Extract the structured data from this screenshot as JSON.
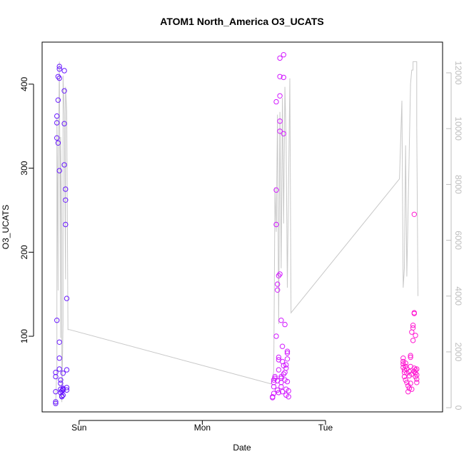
{
  "chart_data": {
    "type": "scatter",
    "title": "ATOM1 North_America O3_UCATS",
    "xlabel": "Date",
    "ylabel": "O3_UCATS",
    "x_unit": "days since Saturday 00:00",
    "xlim": [
      1.7,
      4.95
    ],
    "x_ticks": [
      {
        "value": 2,
        "label": "Sun"
      },
      {
        "value": 3,
        "label": "Mon"
      },
      {
        "value": 4,
        "label": "Tue"
      }
    ],
    "ylim": [
      10,
      450
    ],
    "y_ticks": [
      100,
      200,
      300,
      400
    ],
    "y2lim": [
      -150,
      13100
    ],
    "y2_ticks": [
      0,
      2000,
      4000,
      6000,
      8000,
      10000,
      12000
    ],
    "grid": false,
    "legend": "none",
    "colors": {
      "line": "#c8c8c8",
      "axis": "#000000",
      "right_axis": "#bdbdbd"
    },
    "series": [
      {
        "role": "points",
        "values": [
          [
            1.81,
            20,
            "#6a1aff"
          ],
          [
            1.81,
            22,
            "#6a1aff"
          ],
          [
            1.81,
            34,
            "#6a1aff"
          ],
          [
            1.81,
            52,
            "#6a1aff"
          ],
          [
            1.81,
            57,
            "#6a1aff"
          ],
          [
            1.82,
            119,
            "#6a1aff"
          ],
          [
            1.82,
            336,
            "#6a1aff"
          ],
          [
            1.82,
            354,
            "#6a1aff"
          ],
          [
            1.82,
            362,
            "#6a1aff"
          ],
          [
            1.83,
            330,
            "#6a1aff"
          ],
          [
            1.83,
            381,
            "#6a1aff"
          ],
          [
            1.83,
            409,
            "#6a1aff"
          ],
          [
            1.84,
            407,
            "#6a1aff"
          ],
          [
            1.84,
            418,
            "#6a1aff"
          ],
          [
            1.84,
            421,
            "#6a1aff"
          ],
          [
            1.84,
            93,
            "#6a1aff"
          ],
          [
            1.84,
            297,
            "#6a1aff"
          ],
          [
            1.84,
            74,
            "#6a1aff"
          ],
          [
            1.84,
            61,
            "#6a1aff"
          ],
          [
            1.85,
            48,
            "#6a1aff"
          ],
          [
            1.85,
            44,
            "#6a1aff"
          ],
          [
            1.85,
            37,
            "#6a1aff"
          ],
          [
            1.85,
            33,
            "#6a1aff"
          ],
          [
            1.86,
            28,
            "#6a1aff"
          ],
          [
            1.86,
            29,
            "#6a1aff"
          ],
          [
            1.86,
            35,
            "#6a1aff"
          ],
          [
            1.87,
            36,
            "#6a1aff"
          ],
          [
            1.87,
            37,
            "#6a1aff"
          ],
          [
            1.87,
            38,
            "#6a1aff"
          ],
          [
            1.87,
            56,
            "#6a1aff"
          ],
          [
            1.87,
            30,
            "#6a1aff"
          ],
          [
            1.88,
            304,
            "#6a1aff"
          ],
          [
            1.88,
            353,
            "#6a1aff"
          ],
          [
            1.88,
            392,
            "#6a1aff"
          ],
          [
            1.88,
            416,
            "#6a1aff"
          ],
          [
            1.89,
            275,
            "#6a1aff"
          ],
          [
            1.89,
            262,
            "#6a1aff"
          ],
          [
            1.89,
            233,
            "#6a1aff"
          ],
          [
            1.9,
            145,
            "#6a1aff"
          ],
          [
            1.9,
            60,
            "#6a1aff"
          ],
          [
            1.9,
            39,
            "#6a1aff"
          ],
          [
            1.9,
            36,
            "#6a1aff"
          ],
          [
            3.57,
            27,
            "#d21aff"
          ],
          [
            3.57,
            28,
            "#d21aff"
          ],
          [
            3.58,
            32,
            "#d21aff"
          ],
          [
            3.58,
            40,
            "#d21aff"
          ],
          [
            3.58,
            45,
            "#d21aff"
          ],
          [
            3.58,
            48,
            "#d21aff"
          ],
          [
            3.59,
            50,
            "#d21aff"
          ],
          [
            3.59,
            52,
            "#d21aff"
          ],
          [
            3.6,
            100,
            "#d21aff"
          ],
          [
            3.6,
            233,
            "#d21aff"
          ],
          [
            3.6,
            274,
            "#d21aff"
          ],
          [
            3.6,
            379,
            "#d21aff"
          ],
          [
            3.61,
            155,
            "#d21aff"
          ],
          [
            3.61,
            162,
            "#d21aff"
          ],
          [
            3.61,
            47,
            "#d21aff"
          ],
          [
            3.61,
            36,
            "#d21aff"
          ],
          [
            3.62,
            33,
            "#d21aff"
          ],
          [
            3.62,
            60,
            "#d21aff"
          ],
          [
            3.62,
            72,
            "#d21aff"
          ],
          [
            3.62,
            75,
            "#d21aff"
          ],
          [
            3.62,
            172,
            "#d21aff"
          ],
          [
            3.63,
            174,
            "#d21aff"
          ],
          [
            3.63,
            344,
            "#d21aff"
          ],
          [
            3.63,
            356,
            "#d21aff"
          ],
          [
            3.63,
            386,
            "#d21aff"
          ],
          [
            3.63,
            409,
            "#d21aff"
          ],
          [
            3.63,
            431,
            "#d21aff"
          ],
          [
            3.64,
            119,
            "#d21aff"
          ],
          [
            3.64,
            45,
            "#d21aff"
          ],
          [
            3.64,
            50,
            "#d21aff"
          ],
          [
            3.64,
            52,
            "#d21aff"
          ],
          [
            3.64,
            40,
            "#d21aff"
          ],
          [
            3.65,
            70,
            "#d21aff"
          ],
          [
            3.65,
            88,
            "#d21aff"
          ],
          [
            3.65,
            34,
            "#d21aff"
          ],
          [
            3.66,
            341,
            "#d21aff"
          ],
          [
            3.66,
            408,
            "#d21aff"
          ],
          [
            3.66,
            435,
            "#d21aff"
          ],
          [
            3.66,
            65,
            "#d21aff"
          ],
          [
            3.66,
            55,
            "#d21aff"
          ],
          [
            3.67,
            114,
            "#d21aff"
          ],
          [
            3.67,
            57,
            "#d21aff"
          ],
          [
            3.67,
            48,
            "#d21aff"
          ],
          [
            3.68,
            62,
            "#d21aff"
          ],
          [
            3.68,
            66,
            "#d21aff"
          ],
          [
            3.68,
            37,
            "#d21aff"
          ],
          [
            3.68,
            30,
            "#d21aff"
          ],
          [
            3.69,
            73,
            "#d21aff"
          ],
          [
            3.69,
            80,
            "#d21aff"
          ],
          [
            3.69,
            82,
            "#d21aff"
          ],
          [
            3.69,
            46,
            "#d21aff"
          ],
          [
            3.7,
            28,
            "#d21aff"
          ],
          [
            3.7,
            35,
            "#d21aff"
          ],
          [
            4.63,
            74,
            "#ff1ad2"
          ],
          [
            4.63,
            70,
            "#ff1ad2"
          ],
          [
            4.63,
            67,
            "#ff1ad2"
          ],
          [
            4.63,
            63,
            "#ff1ad2"
          ],
          [
            4.64,
            60,
            "#ff1ad2"
          ],
          [
            4.64,
            57,
            "#ff1ad2"
          ],
          [
            4.64,
            52,
            "#ff1ad2"
          ],
          [
            4.65,
            48,
            "#ff1ad2"
          ],
          [
            4.65,
            64,
            "#ff1ad2"
          ],
          [
            4.65,
            68,
            "#ff1ad2"
          ],
          [
            4.66,
            61,
            "#ff1ad2"
          ],
          [
            4.66,
            56,
            "#ff1ad2"
          ],
          [
            4.66,
            45,
            "#ff1ad2"
          ],
          [
            4.67,
            34,
            "#ff1ad2"
          ],
          [
            4.67,
            41,
            "#ff1ad2"
          ],
          [
            4.68,
            58,
            "#ff1ad2"
          ],
          [
            4.68,
            53,
            "#ff1ad2"
          ],
          [
            4.68,
            38,
            "#ff1ad2"
          ],
          [
            4.69,
            44,
            "#ff1ad2"
          ],
          [
            4.69,
            64,
            "#ff1ad2"
          ],
          [
            4.69,
            75,
            "#ff1ad2"
          ],
          [
            4.69,
            77,
            "#ff1ad2"
          ],
          [
            4.7,
            37,
            "#ff1ad2"
          ],
          [
            4.7,
            55,
            "#ff1ad2"
          ],
          [
            4.7,
            105,
            "#ff1ad2"
          ],
          [
            4.71,
            110,
            "#ff1ad2"
          ],
          [
            4.71,
            95,
            "#ff1ad2"
          ],
          [
            4.71,
            113,
            "#ff1ad2"
          ],
          [
            4.72,
            58,
            "#ff1ad2"
          ],
          [
            4.72,
            62,
            "#ff1ad2"
          ],
          [
            4.72,
            127,
            "#ff1ad2"
          ],
          [
            4.72,
            128,
            "#ff1ad2"
          ],
          [
            4.72,
            245,
            "#ff1ad2"
          ],
          [
            4.73,
            101,
            "#ff1ad2"
          ],
          [
            4.73,
            60,
            "#ff1ad2"
          ],
          [
            4.73,
            56,
            "#ff1ad2"
          ],
          [
            4.73,
            52,
            "#ff1ad2"
          ],
          [
            4.74,
            61,
            "#ff1ad2"
          ],
          [
            4.74,
            54,
            "#ff1ad2"
          ],
          [
            4.74,
            49,
            "#ff1ad2"
          ],
          [
            4.74,
            45,
            "#ff1ad2"
          ]
        ]
      },
      {
        "role": "line",
        "axis": "right",
        "values": [
          [
            1.81,
            80
          ],
          [
            1.82,
            1500
          ],
          [
            1.82,
            10400
          ],
          [
            1.83,
            4200
          ],
          [
            1.83,
            8200
          ],
          [
            1.84,
            12400
          ],
          [
            1.85,
            2500
          ],
          [
            1.85,
            9700
          ],
          [
            1.86,
            6200
          ],
          [
            1.86,
            200
          ],
          [
            1.87,
            3000
          ],
          [
            1.87,
            11900
          ],
          [
            1.88,
            10500
          ],
          [
            1.89,
            4600
          ],
          [
            1.89,
            11500
          ],
          [
            1.9,
            10600
          ],
          [
            1.91,
            2800
          ],
          [
            1.92,
            2800
          ],
          [
            3.56,
            850
          ],
          [
            3.58,
            1300
          ],
          [
            3.59,
            7900
          ],
          [
            3.6,
            6300
          ],
          [
            3.61,
            10500
          ],
          [
            3.62,
            3000
          ],
          [
            3.63,
            10600
          ],
          [
            3.64,
            5000
          ],
          [
            3.65,
            11100
          ],
          [
            3.66,
            6600
          ],
          [
            3.67,
            11500
          ],
          [
            3.68,
            9600
          ],
          [
            3.69,
            4300
          ],
          [
            3.71,
            11800
          ],
          [
            3.72,
            3400
          ],
          [
            4.6,
            8200
          ],
          [
            4.62,
            11000
          ],
          [
            4.63,
            4300
          ],
          [
            4.64,
            5000
          ],
          [
            4.65,
            9400
          ],
          [
            4.66,
            4700
          ],
          [
            4.69,
            11600
          ],
          [
            4.7,
            12100
          ],
          [
            4.71,
            12100
          ],
          [
            4.71,
            12400
          ],
          [
            4.74,
            12400
          ],
          [
            4.74,
            10100
          ],
          [
            4.75,
            4000
          ]
        ]
      }
    ]
  }
}
